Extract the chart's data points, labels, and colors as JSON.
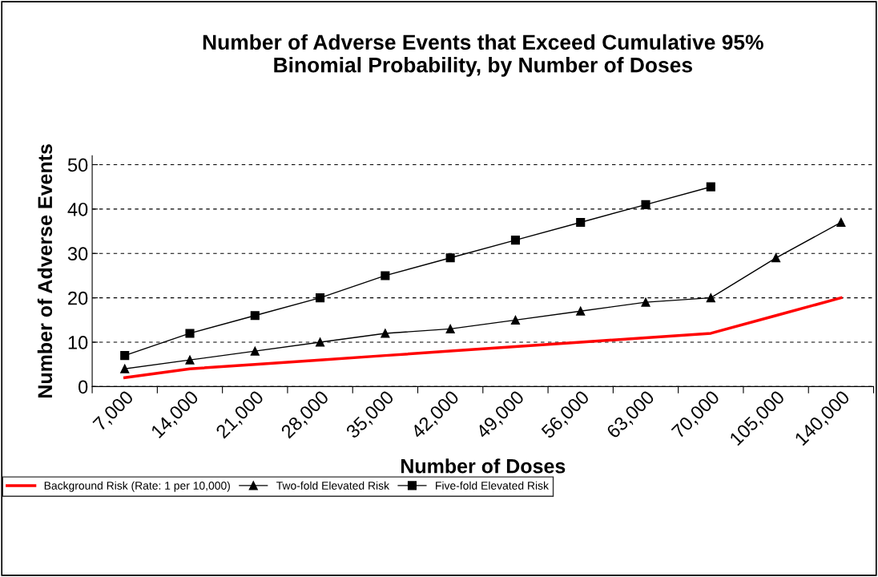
{
  "chart_data": {
    "type": "line",
    "title": "Number of Adverse Events that Exceed Cumulative 95%\nBinomial Probability, by Number of Doses",
    "xlabel": "Number of Doses",
    "ylabel": "Number of Adverse Events",
    "categories": [
      "7,000",
      "14,000",
      "21,000",
      "28,000",
      "35,000",
      "42,000",
      "49,000",
      "56,000",
      "63,000",
      "70,000",
      "105,000",
      "140,000"
    ],
    "series": [
      {
        "name": "Background Risk (Rate: 1 per 10,000)",
        "color": "#ff0000",
        "marker": "none",
        "values": [
          2,
          4,
          5,
          6,
          7,
          8,
          9,
          10,
          11,
          12,
          16,
          20
        ]
      },
      {
        "name": "Two-fold Elevated Risk",
        "color": "#000000",
        "marker": "triangle",
        "values": [
          4,
          6,
          8,
          10,
          12,
          13,
          15,
          17,
          19,
          20,
          29,
          37
        ]
      },
      {
        "name": "Five-fold Elevated Risk",
        "color": "#000000",
        "marker": "square",
        "values": [
          7,
          12,
          16,
          20,
          25,
          29,
          33,
          37,
          41,
          45,
          null,
          null
        ]
      }
    ],
    "ylim": [
      0,
      52
    ],
    "yticks": [
      0,
      10,
      20,
      30,
      40,
      50
    ],
    "grid": "y",
    "legend": "bottom"
  }
}
